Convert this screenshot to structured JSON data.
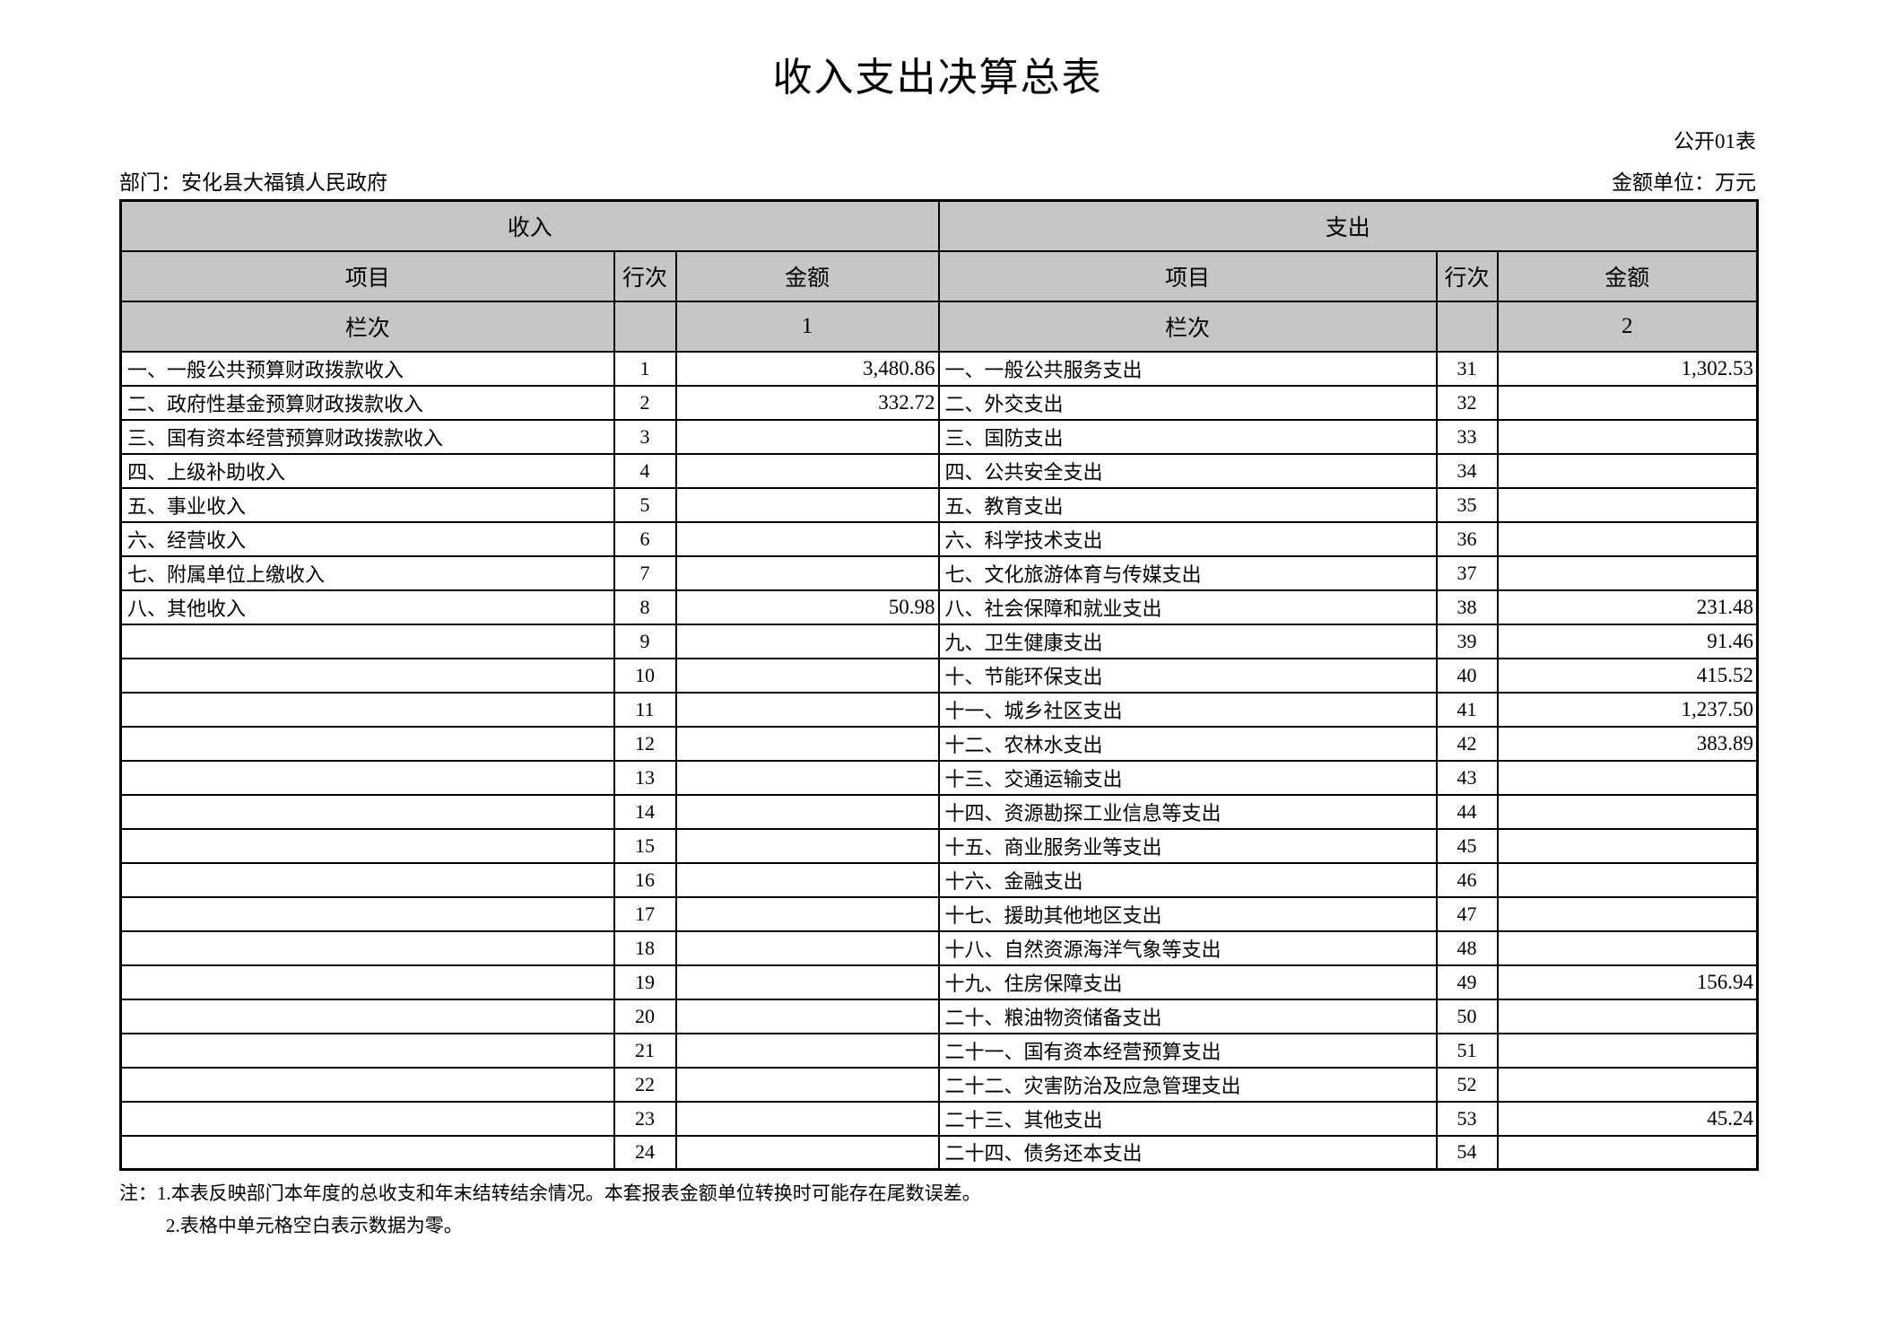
{
  "page": {
    "title": "收入支出决算总表",
    "form_code": "公开01表",
    "department_label": "部门：安化县大福镇人民政府",
    "unit_label": "金额单位：万元"
  },
  "table": {
    "income_section_header": "收入",
    "expense_section_header": "支出",
    "col_item": "项目",
    "col_row_no": "行次",
    "col_amount": "金额",
    "col_index_label": "栏次",
    "income_col_index": "1",
    "expense_col_index": "2",
    "rows": [
      {
        "income_item": "一、一般公共预算财政拨款收入",
        "income_row": "1",
        "income_amount": "3,480.86",
        "expense_item": "一、一般公共服务支出",
        "expense_row": "31",
        "expense_amount": "1,302.53"
      },
      {
        "income_item": "二、政府性基金预算财政拨款收入",
        "income_row": "2",
        "income_amount": "332.72",
        "expense_item": "二、外交支出",
        "expense_row": "32",
        "expense_amount": ""
      },
      {
        "income_item": "三、国有资本经营预算财政拨款收入",
        "income_row": "3",
        "income_amount": "",
        "expense_item": "三、国防支出",
        "expense_row": "33",
        "expense_amount": ""
      },
      {
        "income_item": "四、上级补助收入",
        "income_row": "4",
        "income_amount": "",
        "expense_item": "四、公共安全支出",
        "expense_row": "34",
        "expense_amount": ""
      },
      {
        "income_item": "五、事业收入",
        "income_row": "5",
        "income_amount": "",
        "expense_item": "五、教育支出",
        "expense_row": "35",
        "expense_amount": ""
      },
      {
        "income_item": "六、经营收入",
        "income_row": "6",
        "income_amount": "",
        "expense_item": "六、科学技术支出",
        "expense_row": "36",
        "expense_amount": ""
      },
      {
        "income_item": "七、附属单位上缴收入",
        "income_row": "7",
        "income_amount": "",
        "expense_item": "七、文化旅游体育与传媒支出",
        "expense_row": "37",
        "expense_amount": ""
      },
      {
        "income_item": "八、其他收入",
        "income_row": "8",
        "income_amount": "50.98",
        "expense_item": "八、社会保障和就业支出",
        "expense_row": "38",
        "expense_amount": "231.48"
      },
      {
        "income_item": "",
        "income_row": "9",
        "income_amount": "",
        "expense_item": "九、卫生健康支出",
        "expense_row": "39",
        "expense_amount": "91.46"
      },
      {
        "income_item": "",
        "income_row": "10",
        "income_amount": "",
        "expense_item": "十、节能环保支出",
        "expense_row": "40",
        "expense_amount": "415.52"
      },
      {
        "income_item": "",
        "income_row": "11",
        "income_amount": "",
        "expense_item": "十一、城乡社区支出",
        "expense_row": "41",
        "expense_amount": "1,237.50"
      },
      {
        "income_item": "",
        "income_row": "12",
        "income_amount": "",
        "expense_item": "十二、农林水支出",
        "expense_row": "42",
        "expense_amount": "383.89"
      },
      {
        "income_item": "",
        "income_row": "13",
        "income_amount": "",
        "expense_item": "十三、交通运输支出",
        "expense_row": "43",
        "expense_amount": ""
      },
      {
        "income_item": "",
        "income_row": "14",
        "income_amount": "",
        "expense_item": "十四、资源勘探工业信息等支出",
        "expense_row": "44",
        "expense_amount": ""
      },
      {
        "income_item": "",
        "income_row": "15",
        "income_amount": "",
        "expense_item": "十五、商业服务业等支出",
        "expense_row": "45",
        "expense_amount": ""
      },
      {
        "income_item": "",
        "income_row": "16",
        "income_amount": "",
        "expense_item": "十六、金融支出",
        "expense_row": "46",
        "expense_amount": ""
      },
      {
        "income_item": "",
        "income_row": "17",
        "income_amount": "",
        "expense_item": "十七、援助其他地区支出",
        "expense_row": "47",
        "expense_amount": ""
      },
      {
        "income_item": "",
        "income_row": "18",
        "income_amount": "",
        "expense_item": "十八、自然资源海洋气象等支出",
        "expense_row": "48",
        "expense_amount": ""
      },
      {
        "income_item": "",
        "income_row": "19",
        "income_amount": "",
        "expense_item": "十九、住房保障支出",
        "expense_row": "49",
        "expense_amount": "156.94"
      },
      {
        "income_item": "",
        "income_row": "20",
        "income_amount": "",
        "expense_item": "二十、粮油物资储备支出",
        "expense_row": "50",
        "expense_amount": ""
      },
      {
        "income_item": "",
        "income_row": "21",
        "income_amount": "",
        "expense_item": "二十一、国有资本经营预算支出",
        "expense_row": "51",
        "expense_amount": ""
      },
      {
        "income_item": "",
        "income_row": "22",
        "income_amount": "",
        "expense_item": "二十二、灾害防治及应急管理支出",
        "expense_row": "52",
        "expense_amount": ""
      },
      {
        "income_item": "",
        "income_row": "23",
        "income_amount": "",
        "expense_item": "二十三、其他支出",
        "expense_row": "53",
        "expense_amount": "45.24"
      },
      {
        "income_item": "",
        "income_row": "24",
        "income_amount": "",
        "expense_item": "二十四、债务还本支出",
        "expense_row": "54",
        "expense_amount": ""
      }
    ]
  },
  "notes": {
    "line1": "注：1.本表反映部门本年度的总收支和年末结转结余情况。本套报表金额单位转换时可能存在尾数误差。",
    "line2": "2.表格中单元格空白表示数据为零。"
  },
  "colors": {
    "header_bg": "#c6c6c6",
    "border": "#000000",
    "page_bg": "#ffffff"
  }
}
